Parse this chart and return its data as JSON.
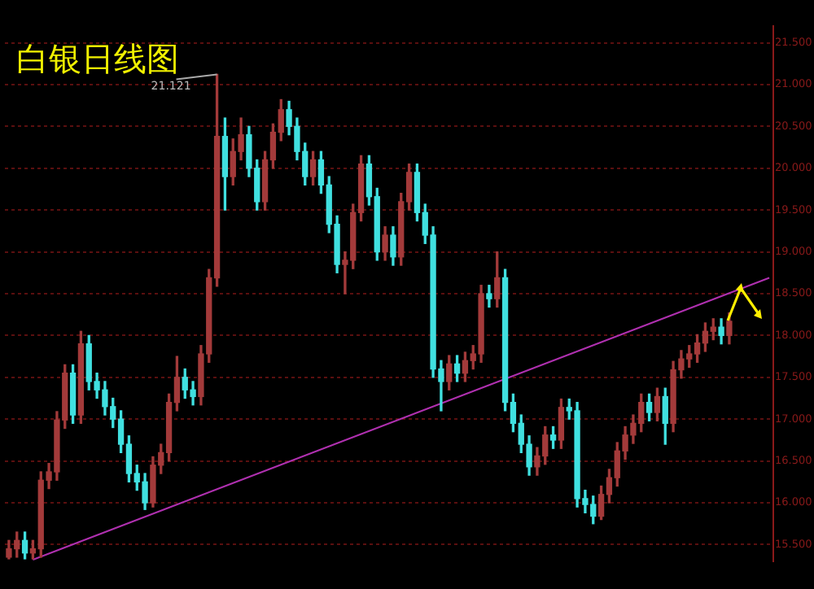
{
  "chart_data": {
    "type": "candlestick",
    "title": "白银日线图",
    "categories": [
      null,
      null,
      null,
      null,
      null,
      null,
      null,
      null,
      null,
      null,
      null,
      null,
      null,
      null,
      null,
      null,
      null,
      null,
      null,
      null,
      null,
      null,
      null,
      null,
      null,
      null,
      null,
      null,
      null,
      null,
      null,
      null,
      null,
      null,
      null,
      null,
      null,
      null,
      null,
      null,
      null,
      null,
      null,
      null,
      null,
      null,
      null,
      null,
      null,
      null,
      null,
      null,
      null,
      null,
      null,
      null,
      null,
      null,
      null,
      null,
      null,
      null,
      null,
      null,
      null,
      null,
      null,
      null,
      null,
      null,
      null,
      null,
      null,
      null,
      null,
      null,
      null,
      null,
      null,
      null,
      null,
      null,
      null,
      null,
      null,
      null,
      null,
      null,
      null,
      null,
      null,
      null,
      null,
      null,
      null,
      null
    ],
    "ylim": [
      15.3,
      21.7
    ],
    "yticks": [
      {
        "value": 15.5,
        "label": "15.500"
      },
      {
        "value": 16,
        "label": "16.000"
      },
      {
        "value": 16.5,
        "label": "16.500"
      },
      {
        "value": 17,
        "label": "17.000"
      },
      {
        "value": 17.5,
        "label": "17.500"
      },
      {
        "value": 18,
        "label": "18.000"
      },
      {
        "value": 18.5,
        "label": "18.500"
      },
      {
        "value": 19,
        "label": "19.000"
      },
      {
        "value": 19.5,
        "label": "19.500"
      },
      {
        "value": 20,
        "label": "20.000"
      },
      {
        "value": 20.5,
        "label": "20.500"
      },
      {
        "value": 21,
        "label": "21.000"
      },
      {
        "value": 21.5,
        "label": "21.500"
      }
    ],
    "grid": "y",
    "annotations": [
      "21.121"
    ],
    "series": [
      {
        "ohlc": [
          [
            15.35,
            15.55,
            15.33,
            15.45
          ],
          [
            15.45,
            15.65,
            15.35,
            15.55
          ],
          [
            15.55,
            15.65,
            15.33,
            15.4
          ],
          [
            15.4,
            15.55,
            15.33,
            15.45
          ],
          [
            15.45,
            16.37,
            15.35,
            16.27
          ],
          [
            16.27,
            16.47,
            16.17,
            16.37
          ],
          [
            16.37,
            17.09,
            16.27,
            16.99
          ],
          [
            16.99,
            17.65,
            16.89,
            17.55
          ],
          [
            17.55,
            17.65,
            16.95,
            17.05
          ],
          [
            17.05,
            18.05,
            16.95,
            17.9
          ],
          [
            17.9,
            18.0,
            17.35,
            17.45
          ],
          [
            17.45,
            17.55,
            17.25,
            17.35
          ],
          [
            17.35,
            17.45,
            17.05,
            17.15
          ],
          [
            17.15,
            17.25,
            16.9,
            17.0
          ],
          [
            17.0,
            17.1,
            16.6,
            16.7
          ],
          [
            16.7,
            16.8,
            16.25,
            16.35
          ],
          [
            16.35,
            16.45,
            16.15,
            16.25
          ],
          [
            16.25,
            16.35,
            15.92,
            16.0
          ],
          [
            16.0,
            16.55,
            15.95,
            16.45
          ],
          [
            16.45,
            16.7,
            16.35,
            16.6
          ],
          [
            16.6,
            17.3,
            16.5,
            17.2
          ],
          [
            17.2,
            17.75,
            17.1,
            17.5
          ],
          [
            17.5,
            17.6,
            17.25,
            17.35
          ],
          [
            17.35,
            17.45,
            17.17,
            17.27
          ],
          [
            17.27,
            17.88,
            17.17,
            17.78
          ],
          [
            17.78,
            18.79,
            17.68,
            18.69
          ],
          [
            18.69,
            21.121,
            18.59,
            20.38
          ],
          [
            20.38,
            20.6,
            19.5,
            19.9
          ],
          [
            19.9,
            20.35,
            19.8,
            20.2
          ],
          [
            20.2,
            20.6,
            20.1,
            20.4
          ],
          [
            20.4,
            20.5,
            19.9,
            20.0
          ],
          [
            20.0,
            20.1,
            19.5,
            19.6
          ],
          [
            19.6,
            20.2,
            19.5,
            20.1
          ],
          [
            20.1,
            20.53,
            20.0,
            20.43
          ],
          [
            20.43,
            20.82,
            20.33,
            20.7
          ],
          [
            20.7,
            20.8,
            20.4,
            20.5
          ],
          [
            20.5,
            20.6,
            20.1,
            20.2
          ],
          [
            20.2,
            20.3,
            19.8,
            19.9
          ],
          [
            19.9,
            20.2,
            19.8,
            20.1
          ],
          [
            20.1,
            20.2,
            19.7,
            19.8
          ],
          [
            19.8,
            19.9,
            19.23,
            19.33
          ],
          [
            19.33,
            19.43,
            18.75,
            18.85
          ],
          [
            18.85,
            19.0,
            18.5,
            18.9
          ],
          [
            18.9,
            19.57,
            18.8,
            19.47
          ],
          [
            19.47,
            20.15,
            19.37,
            20.05
          ],
          [
            20.05,
            20.15,
            19.56,
            19.66
          ],
          [
            19.66,
            19.76,
            18.9,
            19.0
          ],
          [
            19.0,
            19.3,
            18.9,
            19.2
          ],
          [
            19.2,
            19.3,
            18.84,
            18.94
          ],
          [
            18.94,
            19.7,
            18.84,
            19.6
          ],
          [
            19.6,
            20.05,
            19.5,
            19.95
          ],
          [
            19.95,
            20.05,
            19.37,
            19.47
          ],
          [
            19.47,
            19.57,
            19.1,
            19.2
          ],
          [
            19.2,
            19.3,
            17.5,
            17.6
          ],
          [
            17.6,
            17.7,
            17.1,
            17.45
          ],
          [
            17.45,
            17.76,
            17.35,
            17.66
          ],
          [
            17.66,
            17.76,
            17.45,
            17.55
          ],
          [
            17.55,
            17.8,
            17.45,
            17.7
          ],
          [
            17.7,
            17.88,
            17.6,
            17.78
          ],
          [
            17.78,
            18.6,
            17.68,
            18.5
          ],
          [
            18.5,
            18.6,
            18.34,
            18.44
          ],
          [
            18.44,
            19.0,
            18.34,
            18.69
          ],
          [
            18.69,
            18.79,
            17.1,
            17.2
          ],
          [
            17.2,
            17.3,
            16.85,
            16.95
          ],
          [
            16.95,
            17.05,
            16.6,
            16.7
          ],
          [
            16.7,
            16.8,
            16.33,
            16.43
          ],
          [
            16.43,
            16.66,
            16.33,
            16.56
          ],
          [
            16.56,
            16.91,
            16.46,
            16.81
          ],
          [
            16.81,
            16.91,
            16.65,
            16.75
          ],
          [
            16.75,
            17.24,
            16.65,
            17.14
          ],
          [
            17.14,
            17.24,
            17.0,
            17.1
          ],
          [
            17.1,
            17.2,
            15.95,
            16.05
          ],
          [
            16.05,
            16.15,
            15.88,
            15.98
          ],
          [
            15.98,
            16.08,
            15.75,
            15.84
          ],
          [
            15.84,
            16.2,
            15.8,
            16.1
          ],
          [
            16.1,
            16.4,
            16.0,
            16.3
          ],
          [
            16.3,
            16.72,
            16.2,
            16.62
          ],
          [
            16.62,
            16.91,
            16.52,
            16.81
          ],
          [
            16.81,
            17.05,
            16.71,
            16.95
          ],
          [
            16.95,
            17.3,
            16.85,
            17.2
          ],
          [
            17.2,
            17.3,
            16.98,
            17.08
          ],
          [
            17.08,
            17.37,
            16.98,
            17.27
          ],
          [
            17.27,
            17.37,
            16.7,
            16.95
          ],
          [
            16.95,
            17.69,
            16.85,
            17.59
          ],
          [
            17.59,
            17.82,
            17.49,
            17.72
          ],
          [
            17.72,
            17.88,
            17.62,
            17.78
          ],
          [
            17.78,
            18.01,
            17.68,
            17.91
          ],
          [
            17.91,
            18.15,
            17.81,
            18.05
          ],
          [
            18.05,
            18.2,
            17.95,
            18.1
          ],
          [
            18.1,
            18.2,
            17.9,
            18.0
          ],
          [
            18.0,
            18.27,
            17.9,
            18.17
          ],
          null,
          null,
          null,
          null,
          null
        ],
        "colors": [
          "#a33a3a",
          "#a33a3a",
          "#40e0e0",
          "#a33a3a",
          "#a33a3a",
          "#a33a3a",
          "#a33a3a",
          "#a33a3a",
          "#40e0e0",
          "#a33a3a",
          "#40e0e0",
          "#40e0e0",
          "#40e0e0",
          "#40e0e0",
          "#40e0e0",
          "#40e0e0",
          "#40e0e0",
          "#40e0e0",
          "#a33a3a",
          "#a33a3a",
          "#a33a3a",
          "#a33a3a",
          "#40e0e0",
          "#40e0e0",
          "#a33a3a",
          "#a33a3a",
          "#a33a3a",
          "#40e0e0",
          "#a33a3a",
          "#a33a3a",
          "#40e0e0",
          "#40e0e0",
          "#a33a3a",
          "#a33a3a",
          "#a33a3a",
          "#40e0e0",
          "#40e0e0",
          "#40e0e0",
          "#a33a3a",
          "#40e0e0",
          "#40e0e0",
          "#40e0e0",
          "#a33a3a",
          "#a33a3a",
          "#a33a3a",
          "#40e0e0",
          "#40e0e0",
          "#a33a3a",
          "#40e0e0",
          "#a33a3a",
          "#a33a3a",
          "#40e0e0",
          "#40e0e0",
          "#40e0e0",
          "#40e0e0",
          "#a33a3a",
          "#40e0e0",
          "#a33a3a",
          "#a33a3a",
          "#a33a3a",
          "#40e0e0",
          "#a33a3a",
          "#40e0e0",
          "#40e0e0",
          "#40e0e0",
          "#40e0e0",
          "#a33a3a",
          "#a33a3a",
          "#40e0e0",
          "#a33a3a",
          "#40e0e0",
          "#40e0e0",
          "#40e0e0",
          "#40e0e0",
          "#a33a3a",
          "#a33a3a",
          "#a33a3a",
          "#a33a3a",
          "#a33a3a",
          "#a33a3a",
          "#40e0e0",
          "#a33a3a",
          "#40e0e0",
          "#a33a3a",
          "#a33a3a",
          "#a33a3a",
          "#a33a3a",
          "#a33a3a",
          "#a33a3a",
          "#40e0e0",
          "#a33a3a",
          null,
          null,
          null,
          null,
          null
        ]
      },
      {
        "type": "line",
        "color": "#b030b0",
        "values": [
          null,
          null,
          null,
          15.32,
          null,
          null,
          null,
          null,
          null,
          null,
          null,
          null,
          null,
          null,
          null,
          null,
          null,
          null,
          null,
          null,
          null,
          null,
          null,
          null,
          null,
          null,
          null,
          null,
          null,
          null,
          null,
          null,
          null,
          null,
          null,
          null,
          null,
          null,
          null,
          null,
          null,
          null,
          null,
          null,
          null,
          null,
          null,
          null,
          null,
          null,
          null,
          null,
          null,
          null,
          null,
          null,
          null,
          null,
          null,
          null,
          null,
          null,
          null,
          null,
          null,
          null,
          null,
          null,
          null,
          null,
          null,
          null,
          null,
          null,
          null,
          null,
          null,
          null,
          null,
          null,
          null,
          null,
          null,
          null,
          null,
          null,
          null,
          null,
          null,
          null,
          null,
          null,
          null,
          null,
          null,
          18.69
        ]
      }
    ]
  }
}
